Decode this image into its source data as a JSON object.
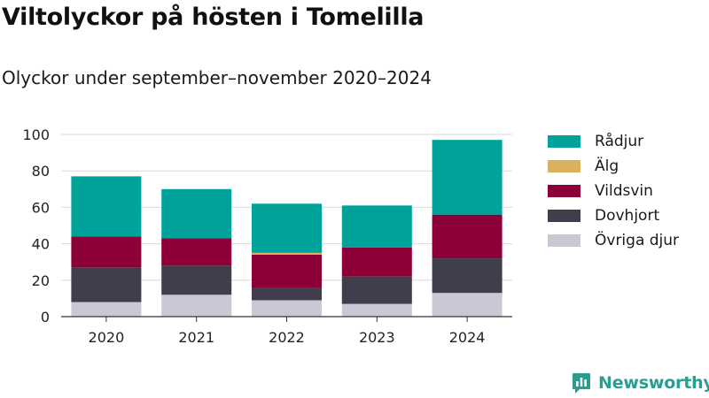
{
  "title": "Viltolyckor på hösten i Tomelilla",
  "subtitle": "Olyckor under september–november 2020–2024",
  "brand": {
    "name": "Newsworthy",
    "icon": "newsworthy-logo-icon"
  },
  "colors": {
    "Rådjur": "#00a39a",
    "Älg": "#dab25f",
    "Vildsvin": "#8c0037",
    "Dovhjort": "#403e4d",
    "Övriga djur": "#c9c8d4"
  },
  "chart_data": {
    "type": "bar",
    "stacked": true,
    "title": "Viltolyckor på hösten i Tomelilla",
    "subtitle": "Olyckor under september–november 2020–2024",
    "xlabel": "",
    "ylabel": "",
    "ylim": [
      0,
      100
    ],
    "yticks": [
      "0",
      "20",
      "40",
      "60",
      "80",
      "100"
    ],
    "grid": "horizontal",
    "legend_position": "right",
    "categories": [
      "2020",
      "2021",
      "2022",
      "2023",
      "2024"
    ],
    "series": [
      {
        "name": "Övriga djur",
        "values": [
          8,
          12,
          9,
          7,
          13
        ]
      },
      {
        "name": "Dovhjort",
        "values": [
          19,
          16,
          7,
          15,
          19
        ]
      },
      {
        "name": "Vildsvin",
        "values": [
          17,
          15,
          18,
          16,
          24
        ]
      },
      {
        "name": "Älg",
        "values": [
          0,
          0,
          1,
          0,
          0
        ]
      },
      {
        "name": "Rådjur",
        "values": [
          33,
          27,
          27,
          23,
          41
        ]
      }
    ],
    "legend": [
      "Rådjur",
      "Älg",
      "Vildsvin",
      "Dovhjort",
      "Övriga djur"
    ]
  }
}
